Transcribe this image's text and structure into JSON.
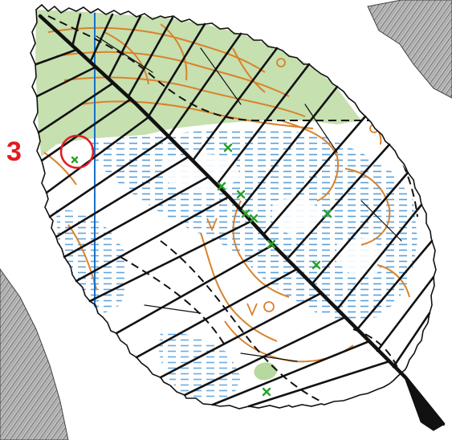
{
  "map": {
    "control": {
      "number": "3",
      "color": "#e11b22"
    },
    "colors": {
      "open_land": "#c6e0b0",
      "marsh": "#3a8fd4",
      "contour": "#d9822b",
      "vein_lines": "#111111",
      "leaf_outline": "#111111",
      "magnetic_north": "#1a6fc4",
      "cross_symbol": "#2aa02a",
      "rock_texture": "#8c8c8c"
    },
    "icons": {
      "control_circle": "circle",
      "vegetation_cross": "x-mark",
      "contour_tag": "v-mark"
    }
  }
}
